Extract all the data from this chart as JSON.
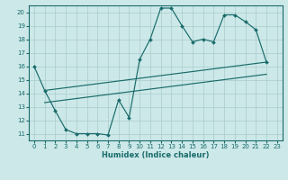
{
  "bg_color": "#cce8e8",
  "grid_color": "#aacccc",
  "line_color": "#1a6b6b",
  "xlabel": "Humidex (Indice chaleur)",
  "xlim": [
    -0.5,
    23.5
  ],
  "ylim": [
    10.5,
    20.5
  ],
  "yticks": [
    11,
    12,
    13,
    14,
    15,
    16,
    17,
    18,
    19,
    20
  ],
  "xticks": [
    0,
    1,
    2,
    3,
    4,
    5,
    6,
    7,
    8,
    9,
    10,
    11,
    12,
    13,
    14,
    15,
    16,
    17,
    18,
    19,
    20,
    21,
    22,
    23
  ],
  "line1_x": [
    0,
    1,
    2,
    3,
    4,
    5,
    6,
    7,
    8,
    9,
    10,
    11,
    12,
    13,
    14,
    15,
    16,
    17,
    18,
    19,
    20,
    21,
    22
  ],
  "line1_y": [
    16.0,
    14.2,
    12.7,
    11.3,
    11.0,
    11.0,
    11.0,
    10.9,
    13.5,
    12.2,
    16.5,
    18.0,
    20.3,
    20.3,
    19.0,
    17.8,
    18.0,
    17.8,
    19.8,
    19.8,
    19.3,
    18.7,
    16.3
  ],
  "line2_x": [
    1,
    22
  ],
  "line2_y": [
    14.2,
    16.3
  ],
  "line3_x": [
    1,
    22
  ],
  "line3_y": [
    13.3,
    15.4
  ]
}
